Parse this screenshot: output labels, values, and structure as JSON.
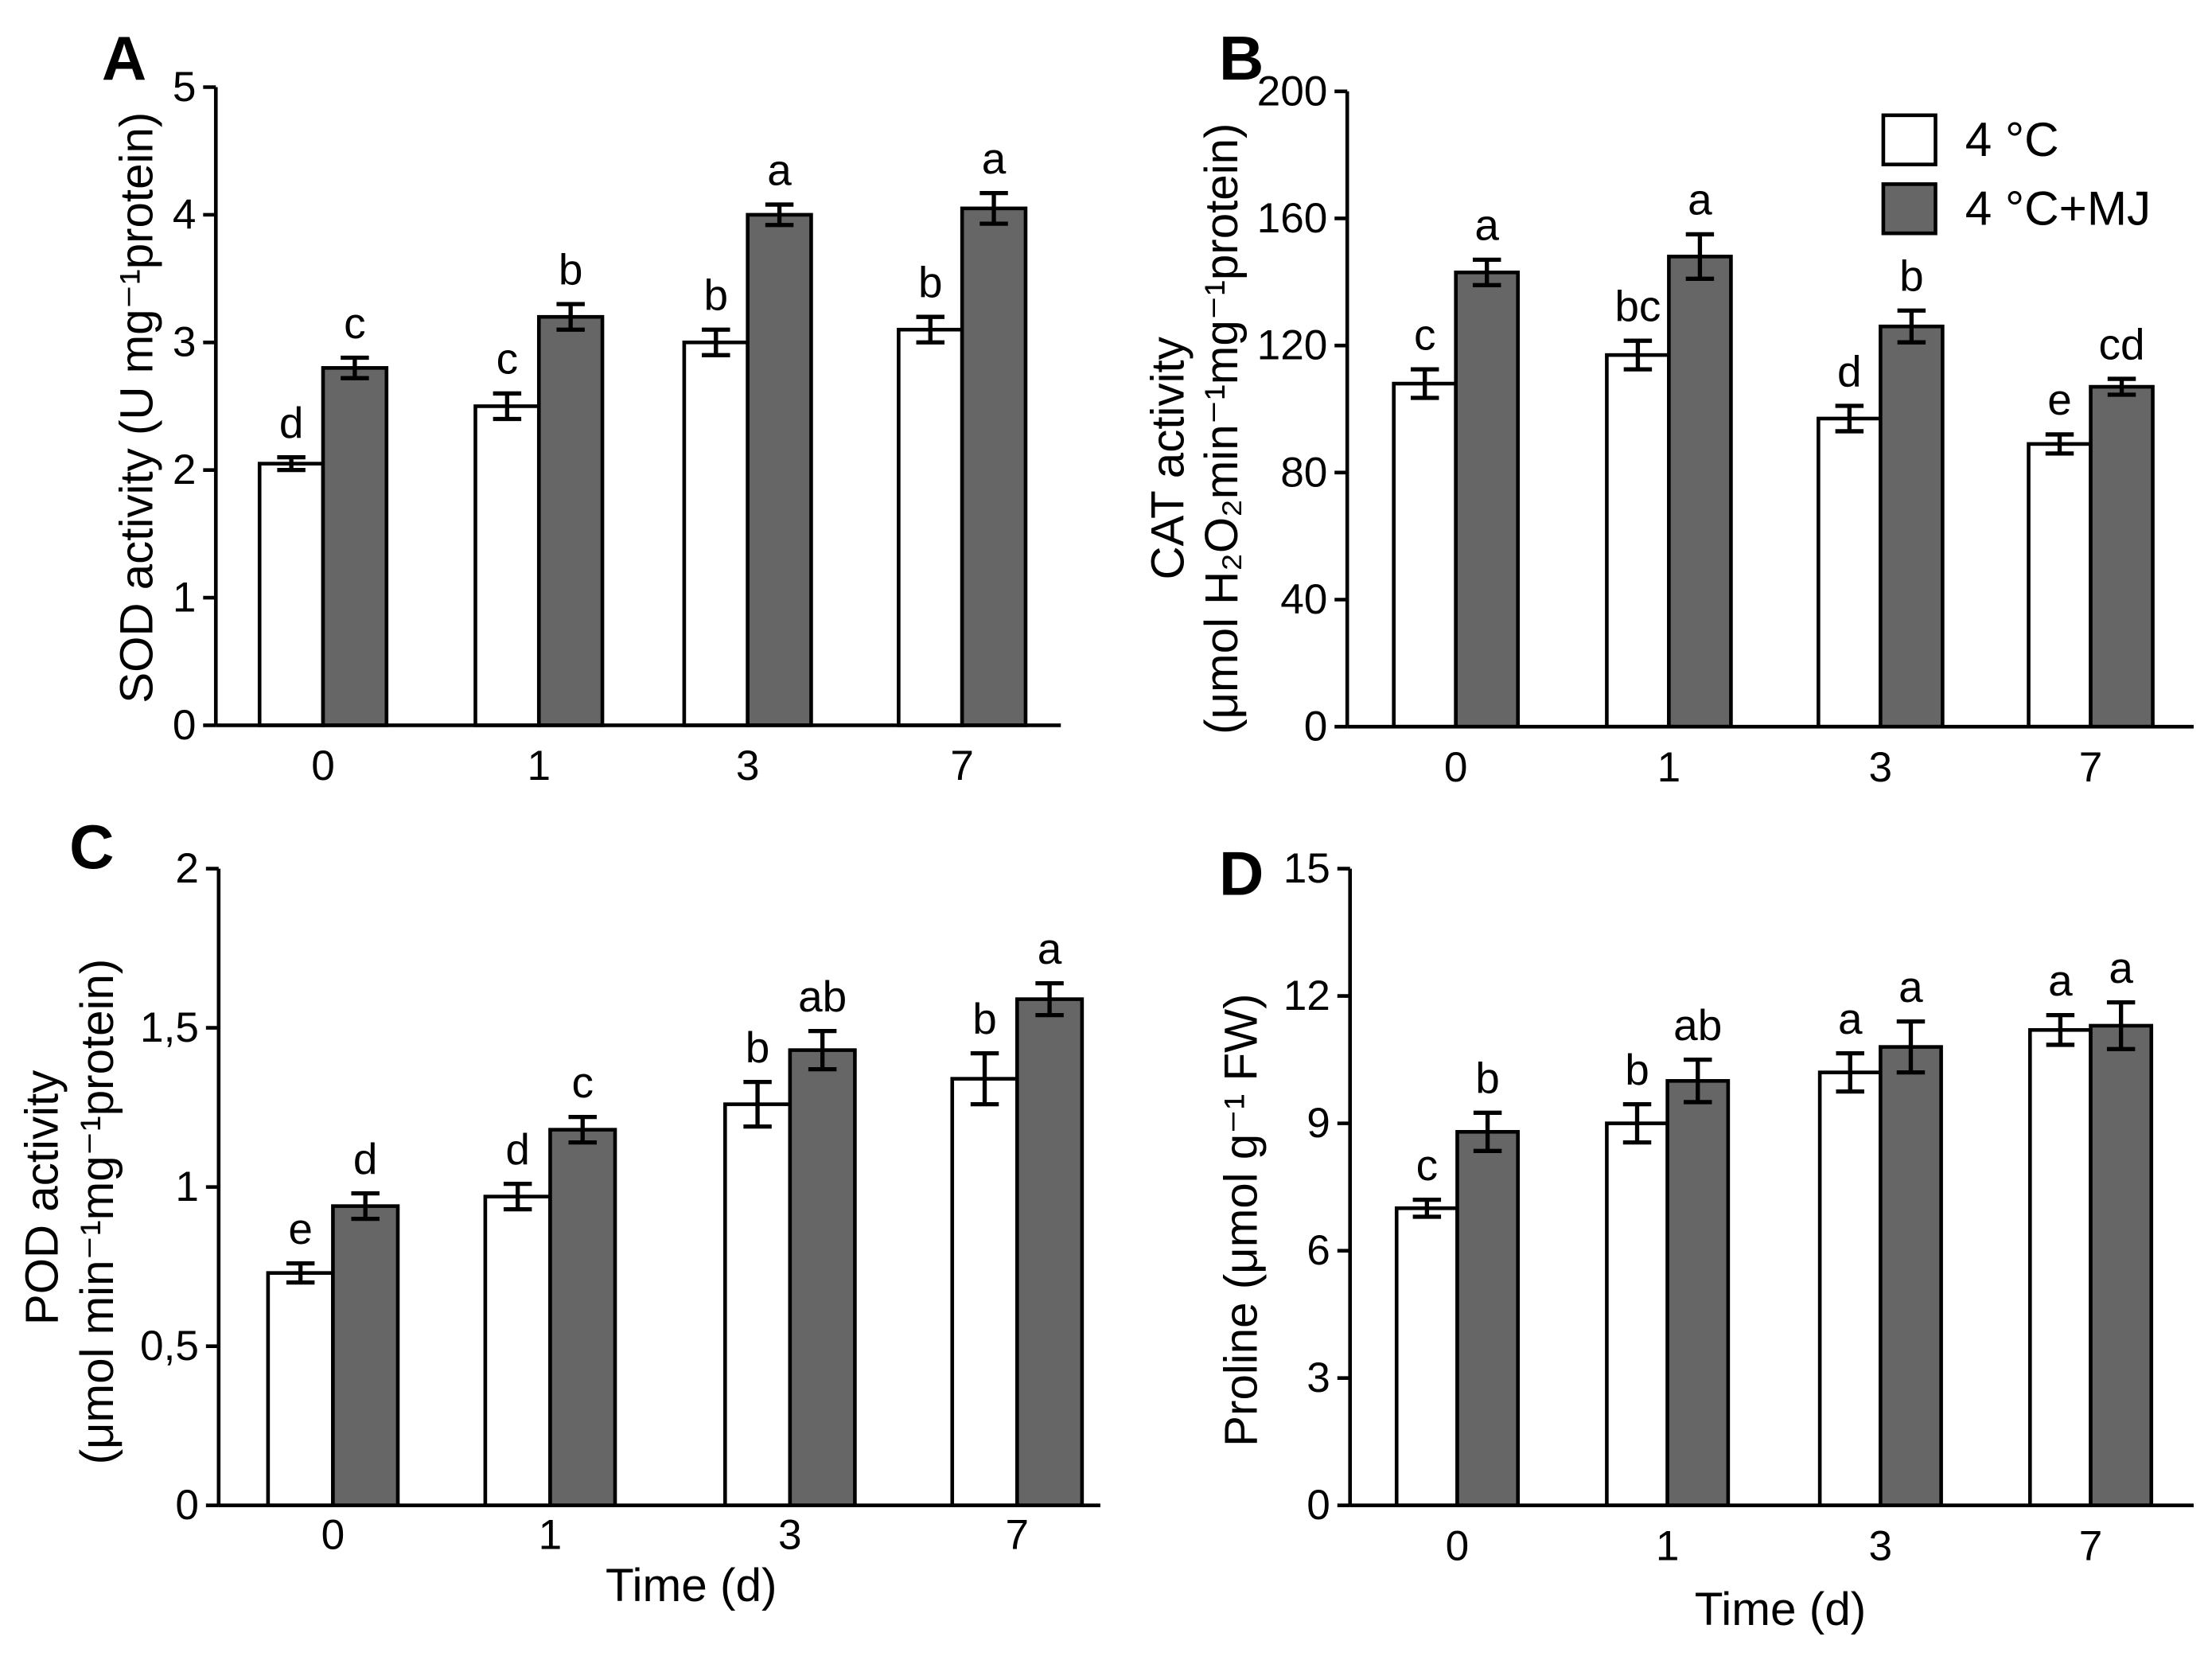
{
  "chart_data": [
    {
      "panel_label": "A",
      "type": "bar",
      "ylabel": [
        "SOD activity (U mg⁻¹protein)"
      ],
      "categories": [
        "0",
        "1",
        "3",
        "7"
      ],
      "ylim": [
        0,
        5
      ],
      "yticks": [
        0,
        1,
        2,
        3,
        4,
        5
      ],
      "ytick_labels": [
        "0",
        "1",
        "2",
        "3",
        "4",
        "5"
      ],
      "grid": false,
      "series": [
        {
          "color": "#ffffff",
          "values": [
            2.05,
            2.5,
            3.0,
            3.1
          ],
          "errors": [
            0.05,
            0.1,
            0.1,
            0.1
          ],
          "letters": [
            "d",
            "c",
            "b",
            "b"
          ]
        },
        {
          "color": "#666666",
          "values": [
            2.8,
            3.2,
            4.0,
            4.05
          ],
          "errors": [
            0.08,
            0.1,
            0.08,
            0.12
          ],
          "letters": [
            "c",
            "b",
            "a",
            "a"
          ]
        }
      ]
    },
    {
      "panel_label": "B",
      "type": "bar",
      "ylabel": [
        "CAT activity",
        "(μmol H₂O₂min⁻¹mg⁻¹protein)"
      ],
      "categories": [
        "0",
        "1",
        "3",
        "7"
      ],
      "ylim": [
        0,
        200
      ],
      "yticks": [
        0,
        40,
        80,
        120,
        160,
        200
      ],
      "ytick_labels": [
        "0",
        "40",
        "80",
        "120",
        "160",
        "200"
      ],
      "grid": false,
      "series": [
        {
          "color": "#ffffff",
          "values": [
            108,
            117,
            97,
            89
          ],
          "errors": [
            4.5,
            4.5,
            4,
            3
          ],
          "letters": [
            "c",
            "bc",
            "d",
            "e"
          ]
        },
        {
          "color": "#666666",
          "values": [
            143,
            148,
            126,
            107
          ],
          "errors": [
            4,
            7,
            5,
            2.5
          ],
          "letters": [
            "a",
            "a",
            "b",
            "cd"
          ]
        }
      ],
      "legend": {
        "position": "top-right",
        "entries": [
          "4 °C",
          "4 °C+MJ"
        ]
      }
    },
    {
      "panel_label": "C",
      "type": "bar",
      "ylabel": [
        "POD activity",
        "(μmol min⁻¹mg⁻¹protein)"
      ],
      "xlabel": "Time (d)",
      "categories": [
        "0",
        "1",
        "3",
        "7"
      ],
      "ylim": [
        0,
        2
      ],
      "yticks": [
        0,
        0.5,
        1,
        1.5,
        2
      ],
      "ytick_labels": [
        "0",
        "0,5",
        "1",
        "1,5",
        "2"
      ],
      "grid": false,
      "series": [
        {
          "color": "#ffffff",
          "values": [
            0.73,
            0.97,
            1.26,
            1.34
          ],
          "errors": [
            0.03,
            0.04,
            0.07,
            0.08
          ],
          "letters": [
            "e",
            "d",
            "b",
            "b"
          ]
        },
        {
          "color": "#666666",
          "values": [
            0.94,
            1.18,
            1.43,
            1.59
          ],
          "errors": [
            0.04,
            0.04,
            0.06,
            0.05
          ],
          "letters": [
            "d",
            "c",
            "ab",
            "a"
          ]
        }
      ]
    },
    {
      "panel_label": "D",
      "type": "bar",
      "ylabel": [
        "Proline (μmol g⁻¹ FW)"
      ],
      "xlabel": "Time (d)",
      "categories": [
        "0",
        "1",
        "3",
        "7"
      ],
      "ylim": [
        0,
        15
      ],
      "yticks": [
        0,
        3,
        6,
        9,
        12,
        15
      ],
      "ytick_labels": [
        "0",
        "3",
        "6",
        "9",
        "12",
        "15"
      ],
      "grid": false,
      "series": [
        {
          "color": "#ffffff",
          "values": [
            7.0,
            9.0,
            10.2,
            11.2
          ],
          "errors": [
            0.2,
            0.45,
            0.45,
            0.35
          ],
          "letters": [
            "c",
            "b",
            "a",
            "a"
          ]
        },
        {
          "color": "#666666",
          "values": [
            8.8,
            10.0,
            10.8,
            11.3
          ],
          "errors": [
            0.45,
            0.5,
            0.6,
            0.55
          ],
          "letters": [
            "b",
            "ab",
            "a",
            "a"
          ]
        }
      ]
    }
  ]
}
